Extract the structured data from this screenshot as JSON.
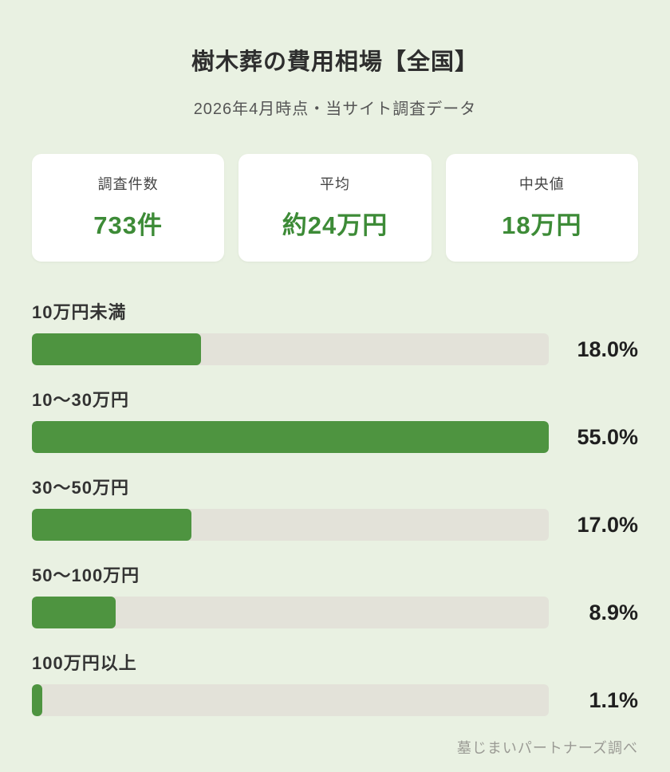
{
  "title": "樹木葬の費用相場【全国】",
  "subtitle": "2026年4月時点・当サイト調査データ",
  "stats": [
    {
      "label": "調査件数",
      "value": "733件"
    },
    {
      "label": "平均",
      "value": "約24万円"
    },
    {
      "label": "中央値",
      "value": "18万円"
    }
  ],
  "chart_data": {
    "type": "bar",
    "orientation": "horizontal",
    "title": "樹木葬の費用相場【全国】",
    "categories": [
      "10万円未満",
      "10〜30万円",
      "30〜50万円",
      "50〜100万円",
      "100万円以上"
    ],
    "values": [
      18.0,
      55.0,
      17.0,
      8.9,
      1.1
    ],
    "value_labels": [
      "18.0%",
      "55.0%",
      "17.0%",
      "8.9%",
      "1.1%"
    ],
    "unit": "%",
    "scale_max": 55.0,
    "bar_color": "#4e9440",
    "track_color": "#e3e2d9",
    "legend": "off",
    "grid": "off"
  },
  "footer": "墓じまいパートナーズ調べ",
  "colors": {
    "background": "#e9f1e2",
    "accent_green": "#3d8b37",
    "bar_green": "#4e9440",
    "track_gray": "#e3e2d9"
  }
}
